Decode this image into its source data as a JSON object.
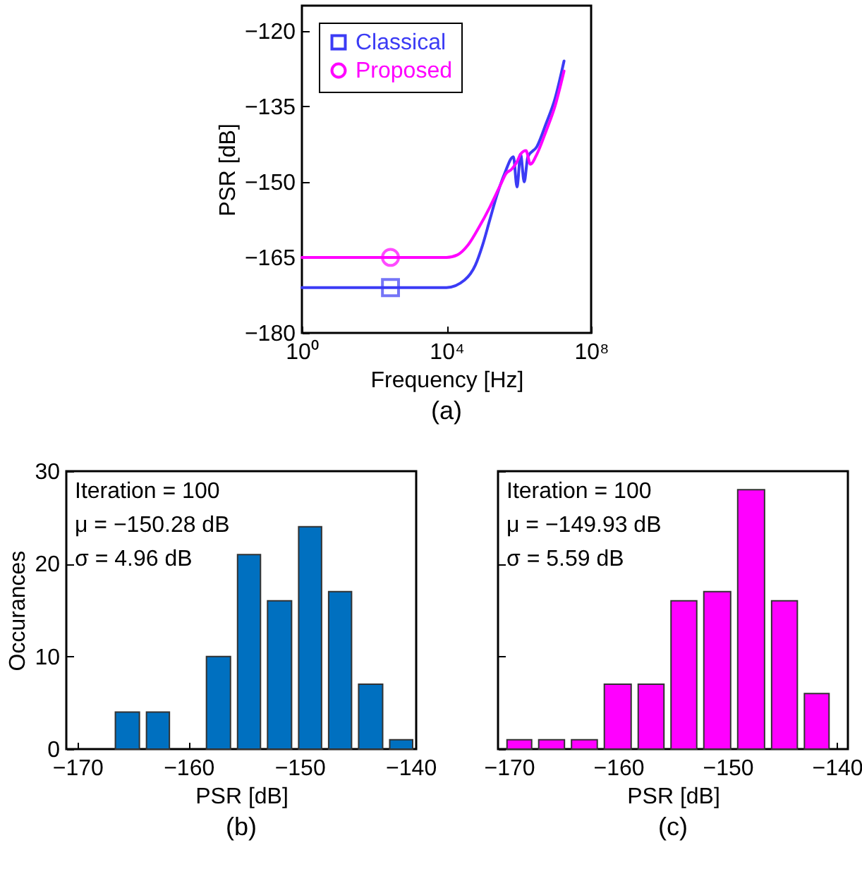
{
  "chart_data": [
    {
      "type": "line",
      "title": "(a)",
      "xlabel": "Frequency [Hz]",
      "ylabel": "PSR [dB]",
      "log": "x",
      "xlim": [
        1,
        100000000
      ],
      "xticks": [
        {
          "value": 1,
          "label": "10⁰"
        },
        {
          "value": 10000,
          "label": "10⁴"
        },
        {
          "value": 100000000,
          "label": "10⁸"
        }
      ],
      "ylim": [
        -180,
        -115
      ],
      "yticks": [
        -180,
        -165,
        -150,
        -135,
        -120
      ],
      "grid": false,
      "legend": "top left",
      "series": [
        {
          "name": "Classical",
          "color": "#3b3bf5",
          "x": [
            1,
            10000,
            31600,
            63100,
            100000,
            158000,
            251000,
            398000,
            708000,
            891000,
            1120000,
            1410000,
            1780000,
            3160000,
            5620000,
            10000000,
            17800000
          ],
          "values": [
            -171,
            -171,
            -169.5,
            -166.5,
            -162.5,
            -157.5,
            -152.5,
            -148.5,
            -145,
            -151,
            -144.5,
            -150,
            -145,
            -143,
            -138.5,
            -133.5,
            -126
          ]
        },
        {
          "name": "Proposed",
          "color": "#ff00ff",
          "x": [
            1,
            10000,
            20000,
            39800,
            79400,
            158000,
            316000,
            447000,
            631000,
            891000,
            1120000,
            1580000,
            2090000,
            3160000,
            5620000,
            10000000,
            17800000
          ],
          "values": [
            -165,
            -165,
            -164.5,
            -162.5,
            -159,
            -155,
            -150.5,
            -148.3,
            -147.5,
            -146,
            -144.5,
            -143.8,
            -146.5,
            -144.5,
            -140,
            -135,
            -128
          ]
        },
        {
          "type": "scatter",
          "color": "#3b3bf5",
          "marker": "square",
          "x": [
            282
          ],
          "values": [
            -171
          ]
        },
        {
          "type": "scatter",
          "color": "#ff00ff",
          "marker": "circle",
          "x": [
            282
          ],
          "values": [
            -165
          ]
        }
      ]
    },
    {
      "type": "histogram",
      "title": "(b)",
      "xlabel": "PSR [dB]",
      "ylabel": "Occurances",
      "color": "#0070c0",
      "bins": [
        -166.9,
        -164.1,
        -161.4,
        -158.7,
        -155.9,
        -153.2,
        -150.4,
        -147.7,
        -145,
        -142.2,
        -139.5
      ],
      "values": [
        4,
        4,
        0,
        10,
        21,
        16,
        24,
        17,
        7,
        1
      ],
      "xlim": [
        -171,
        -139.5
      ],
      "xticks": [
        -170,
        -160,
        -150,
        -140
      ],
      "ylim": [
        0,
        30
      ],
      "yticks": [
        0,
        10,
        20,
        30
      ],
      "annotations": [
        "Iteration = 100",
        "μ = −150.28 dB",
        "σ = 4.96 dB"
      ]
    },
    {
      "type": "histogram",
      "title": "(c)",
      "xlabel": "PSR [dB]",
      "color": "#ff00ff",
      "bins": [
        -170.5,
        -167.6,
        -164.6,
        -161.6,
        -158.5,
        -155.5,
        -152.5,
        -149.4,
        -146.3,
        -143.3,
        -140.4
      ],
      "values": [
        1,
        1,
        1,
        7,
        7,
        16,
        17,
        28,
        16,
        6
      ],
      "xlim": [
        -171,
        -139
      ],
      "xticks": [
        -170,
        -160,
        -150,
        -140
      ],
      "ylim": [
        0,
        30
      ],
      "yticks": [
        0,
        10,
        20,
        30
      ],
      "tick_labels": "x",
      "annotations": [
        "Iteration = 100",
        "μ = −149.93 dB",
        "σ = 5.59 dB"
      ]
    }
  ]
}
